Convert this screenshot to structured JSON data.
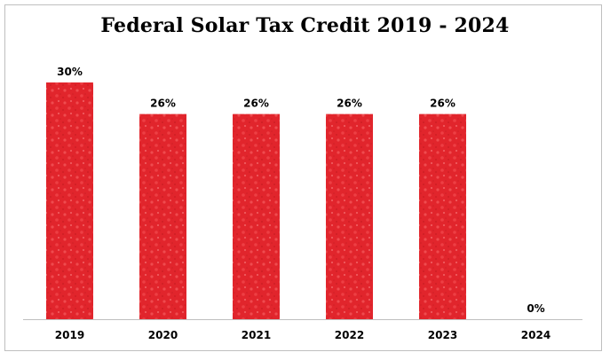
{
  "chart_data": {
    "type": "bar",
    "title": "Federal Solar Tax Credit 2019 - 2024",
    "categories": [
      "2019",
      "2020",
      "2021",
      "2022",
      "2023",
      "2024"
    ],
    "values": [
      30,
      26,
      26,
      26,
      26,
      0
    ],
    "data_labels": [
      "30%",
      "26%",
      "26%",
      "26%",
      "26%",
      "0%"
    ],
    "xlabel": "",
    "ylabel": "",
    "ylim": [
      0,
      30
    ],
    "grid": false,
    "legend": "none",
    "bar_color": "#e1252c",
    "bar_texture_color": "#ef4b4f"
  }
}
